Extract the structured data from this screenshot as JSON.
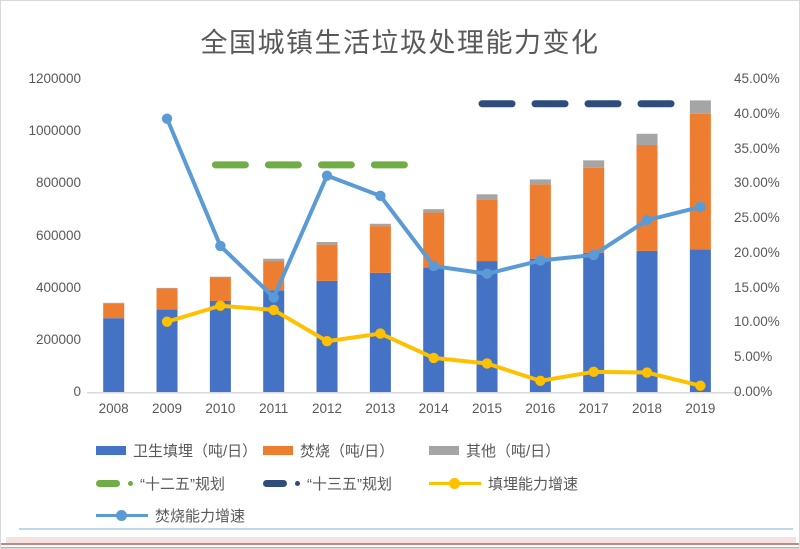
{
  "page": {
    "title": "全国城镇生活垃圾处理能力变化"
  },
  "colors": {
    "landfill": "#4472C4",
    "incineration": "#ED7D31",
    "other": "#A5A5A5",
    "plan12": "#70AD47",
    "plan13": "#2E4D7D",
    "landfill_growth": "#FFC000",
    "incineration_growth": "#5B9BD5",
    "axis_text": "#595959",
    "axis_line": "#D9D9D9"
  },
  "chart_data": {
    "type": "combo-stacked-bar-line",
    "title": "全国城镇生活垃圾处理能力变化",
    "categories": [
      2008,
      2009,
      2010,
      2011,
      2012,
      2013,
      2014,
      2015,
      2016,
      2017,
      2018,
      2019
    ],
    "left_axis": {
      "min": 0,
      "max": 1200000,
      "step": 200000,
      "ticks": [
        "1200000",
        "1000000",
        "800000",
        "600000",
        "400000",
        "200000",
        "0"
      ]
    },
    "right_axis": {
      "min": 0,
      "max": 45,
      "step": 5,
      "ticks": [
        "45.00%",
        "40.00%",
        "35.00%",
        "30.00%",
        "25.00%",
        "20.00%",
        "15.00%",
        "10.00%",
        "5.00%",
        "0.00%"
      ]
    },
    "bar_series": [
      {
        "name": "卫生填埋（吨/日）",
        "color_key": "landfill",
        "values": [
          283000,
          317000,
          349000,
          390000,
          426000,
          457000,
          477000,
          502000,
          511000,
          534000,
          541000,
          547000
        ]
      },
      {
        "name": "焚烧（吨/日）",
        "color_key": "incineration",
        "values": [
          57000,
          80000,
          90000,
          112000,
          139000,
          179000,
          211000,
          237000,
          285000,
          326000,
          406000,
          520000
        ]
      },
      {
        "name": "其他（吨/日）",
        "color_key": "other",
        "values": [
          2000,
          2000,
          3000,
          9000,
          10000,
          9000,
          13000,
          19000,
          19000,
          28000,
          43000,
          51000
        ]
      }
    ],
    "line_series": [
      {
        "name": "填埋能力增速",
        "color_key": "landfill_growth",
        "axis": "right",
        "values": [
          null,
          10.1,
          12.4,
          11.8,
          7.3,
          8.4,
          4.9,
          4.1,
          1.6,
          2.9,
          2.8,
          0.9
        ]
      },
      {
        "name": "焚烧能力增速",
        "color_key": "incineration_growth",
        "axis": "right",
        "values": [
          null,
          39.3,
          21.0,
          13.6,
          31.1,
          28.2,
          18.1,
          17.0,
          18.9,
          19.7,
          24.7,
          26.6
        ]
      }
    ],
    "plan_lines": [
      {
        "name": "“十二五”规划",
        "color_key": "plan12",
        "axis": "left",
        "value": 871000,
        "from_year": 2010,
        "to_year": 2013
      },
      {
        "name": "“十三五”规划",
        "color_key": "plan13",
        "axis": "left",
        "value": 1105000,
        "from_year": 2015,
        "to_year": 2018
      }
    ],
    "legend_position": "bottom-left",
    "grid": "off"
  },
  "legend": {
    "rows": [
      [
        {
          "key": "landfill",
          "type": "bar",
          "label": "卫生填埋（吨/日）"
        },
        {
          "key": "incineration",
          "type": "bar",
          "label": "焚烧（吨/日）"
        },
        {
          "key": "other",
          "type": "bar",
          "label": "其他（吨/日）"
        }
      ],
      [
        {
          "key": "plan12",
          "type": "dash",
          "label": "“十二五”规划"
        },
        {
          "key": "plan13",
          "type": "dash",
          "label": "“十三五”规划"
        },
        {
          "key": "landfill_growth",
          "type": "line",
          "label": "填埋能力增速"
        }
      ],
      [
        {
          "key": "incineration_growth",
          "type": "line",
          "label": "焚烧能力增速"
        }
      ]
    ]
  }
}
